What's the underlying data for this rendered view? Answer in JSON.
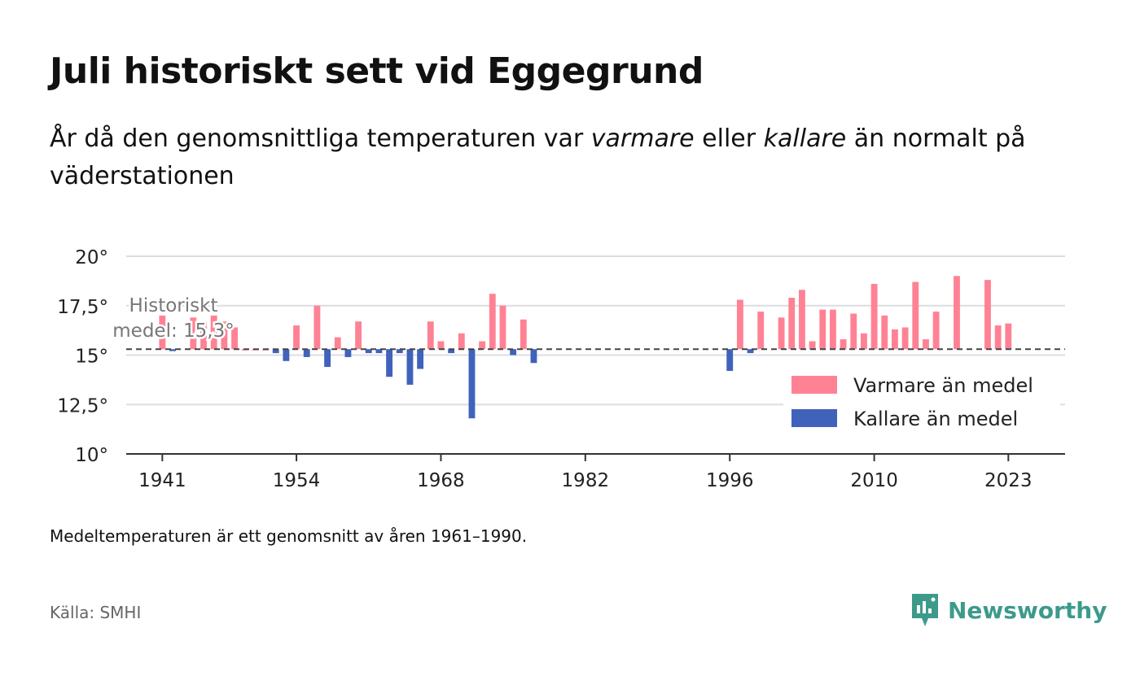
{
  "title": "Juli historiskt sett vid Eggegrund",
  "subtitle": {
    "part1": "År då den genomsnittliga temperaturen var ",
    "warm_word": "varmare",
    "part2": " eller ",
    "cold_word": "kallare",
    "part3": " än normalt på väderstationen"
  },
  "footnote": "Medeltemperaturen är ett genomsnitt av åren 1961–1990.",
  "source": "Källa: SMHI",
  "brand": {
    "name": "Newsworthy",
    "color": "#3d9a8b",
    "icon": "newsworthy-logo-icon"
  },
  "chart_data": {
    "type": "bar",
    "baseline": 15.3,
    "baseline_label": [
      "Historiskt",
      "medel: 15,3°"
    ],
    "ylim": [
      10,
      20
    ],
    "yticks": [
      {
        "value": 10,
        "label": "10°"
      },
      {
        "value": 12.5,
        "label": "12,5°"
      },
      {
        "value": 15,
        "label": "15°"
      },
      {
        "value": 17.5,
        "label": "17,5°"
      },
      {
        "value": 20,
        "label": "20°"
      }
    ],
    "xlim": [
      1937.5,
      2028.5
    ],
    "xticks": [
      1941,
      1954,
      1968,
      1982,
      1996,
      2010,
      2023
    ],
    "colors": {
      "warm": "#ff8294",
      "cold": "#4062bb"
    },
    "legend": {
      "position": "right",
      "items": [
        {
          "key": "warm",
          "label": "Varmare än medel"
        },
        {
          "key": "cold",
          "label": "Kallare än medel"
        }
      ]
    },
    "x": [
      1941,
      1942,
      1944,
      1945,
      1946,
      1947,
      1948,
      1949,
      1950,
      1951,
      1952,
      1953,
      1954,
      1955,
      1956,
      1957,
      1958,
      1959,
      1960,
      1961,
      1962,
      1963,
      1964,
      1965,
      1966,
      1967,
      1968,
      1969,
      1970,
      1971,
      1972,
      1973,
      1974,
      1975,
      1976,
      1977,
      1996,
      1997,
      1998,
      1999,
      2001,
      2002,
      2003,
      2004,
      2005,
      2006,
      2007,
      2008,
      2009,
      2010,
      2011,
      2012,
      2013,
      2014,
      2015,
      2016,
      2018,
      2021,
      2022,
      2023
    ],
    "values": [
      17.0,
      15.2,
      16.9,
      16.7,
      17.0,
      16.7,
      16.4,
      15.3,
      15.3,
      15.3,
      15.1,
      14.7,
      16.5,
      14.9,
      17.5,
      14.4,
      15.9,
      14.9,
      16.7,
      15.1,
      15.1,
      13.9,
      15.1,
      13.5,
      14.3,
      16.7,
      15.7,
      15.1,
      16.1,
      11.8,
      15.7,
      18.1,
      17.5,
      15.0,
      16.8,
      14.6,
      14.2,
      17.8,
      15.1,
      17.2,
      16.9,
      17.9,
      18.3,
      15.7,
      17.3,
      17.3,
      15.8,
      17.1,
      16.1,
      18.6,
      17.0,
      16.3,
      16.4,
      18.7,
      15.8,
      17.2,
      19.0,
      18.8,
      16.5,
      16.6
    ]
  }
}
